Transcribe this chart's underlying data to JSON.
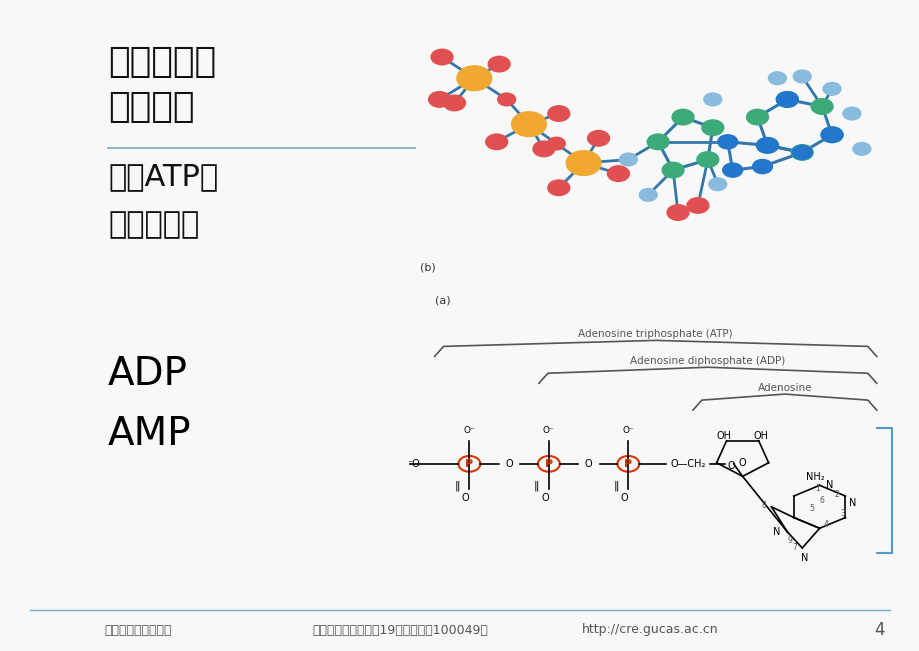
{
  "bg_color": "#f8f8f8",
  "title_line1": "微生物生长",
  "title_line2": "能量来源",
  "title_color": "#111111",
  "title_fontsize": 26,
  "divider_color": "#7aaacc",
  "subtitle_line1": "认识ATP等",
  "subtitle_line2": "三磷酸腺苷",
  "subtitle_fontsize": 22,
  "label_adp": "ADP",
  "label_amp": "AMP",
  "label_fontsize": 28,
  "footer_text1": "中国科学院研究生院",
  "footer_text2": "地址：北京市玉泉路19号甲（邮编100049）",
  "footer_text3": "http://cre.gucas.ac.cn",
  "footer_page": "4",
  "footer_fontsize": 9,
  "footer_color": "#555555",
  "footer_line_color": "#7aaacc",
  "atp_p_color": "#dd3300",
  "atp_bond_color": "#cc4444",
  "mol3d_p_color": "#f0a830",
  "mol3d_o_color": "#e05050",
  "mol3d_c_color": "#3daa7a",
  "mol3d_n_color": "#2277cc",
  "mol3d_light_blue": "#88bbdd",
  "mol3d_bond_color": "#3377aa"
}
